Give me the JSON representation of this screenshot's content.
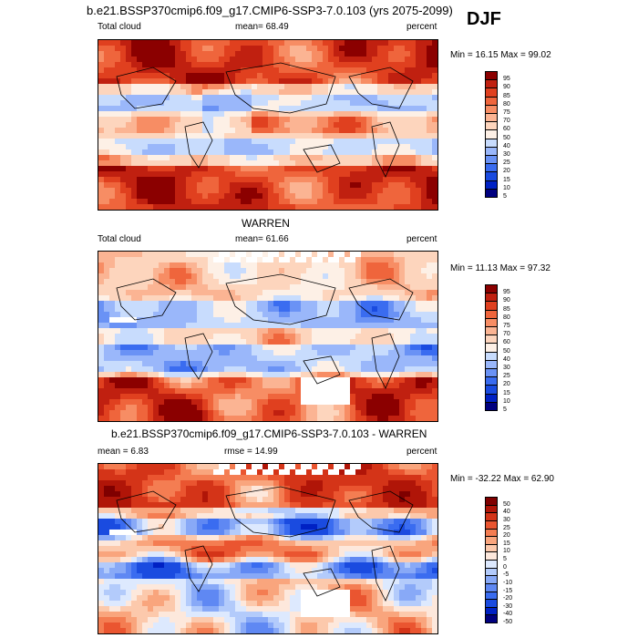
{
  "figure": {
    "title": "b.e21.BSSP370cmip6.f09_g17.CMIP6-SSP3-7.0.103 (yrs 2075-2099)",
    "season": "DJF"
  },
  "panels": [
    {
      "id": "model",
      "title": "",
      "left_label": "Total cloud",
      "center_label": "mean=  68.49",
      "right_label": "percent",
      "minmax": "Min =  16.15 Max =  99.02",
      "colorbar_labels": [
        "95",
        "90",
        "85",
        "80",
        "75",
        "70",
        "60",
        "50",
        "40",
        "30",
        "25",
        "20",
        "15",
        "10",
        "5"
      ]
    },
    {
      "id": "obs",
      "title": "WARREN",
      "left_label": "Total cloud",
      "center_label": "mean=  61.66",
      "right_label": "percent",
      "minmax": "Min =  11.13 Max =  97.32",
      "colorbar_labels": [
        "95",
        "90",
        "85",
        "80",
        "75",
        "70",
        "60",
        "50",
        "40",
        "30",
        "25",
        "20",
        "15",
        "10",
        "5"
      ]
    },
    {
      "id": "diff",
      "title": "b.e21.BSSP370cmip6.f09_g17.CMIP6-SSP3-7.0.103 - WARREN",
      "left_label": "mean =   6.83",
      "center_label": "rmse =  14.99",
      "right_label": "percent",
      "minmax": "Min = -32.22 Max =  62.90",
      "colorbar_labels": [
        "50",
        "40",
        "30",
        "25",
        "20",
        "15",
        "10",
        "5",
        "0",
        "-5",
        "-10",
        "-15",
        "-20",
        "-30",
        "-40",
        "-50"
      ]
    }
  ],
  "colors": {
    "abs_scale": [
      "#00007f",
      "#0021c4",
      "#1a4be0",
      "#3a6cf0",
      "#6a92f5",
      "#9ab7fa",
      "#c8dcfd",
      "#fdf0e6",
      "#fdd5bd",
      "#fbb493",
      "#f78d64",
      "#ef653c",
      "#e0401f",
      "#c02010",
      "#8b0000"
    ],
    "diff_scale": [
      "#00007f",
      "#0021c4",
      "#1a4be0",
      "#3a6cf0",
      "#5f88f3",
      "#88a9f7",
      "#b3cbfb",
      "#dde9fe",
      "#fde8dc",
      "#fcc9ac",
      "#f9a57d",
      "#f47d52",
      "#ea5530",
      "#d43418",
      "#b01508",
      "#7f0000"
    ]
  },
  "chart_data": [
    {
      "type": "heatmap",
      "title": "",
      "variable": "Total cloud",
      "units": "percent",
      "mean": 68.49,
      "min": 16.15,
      "max": 99.02,
      "levels": [
        5,
        10,
        15,
        20,
        25,
        30,
        40,
        50,
        60,
        70,
        75,
        80,
        85,
        90,
        95
      ]
    },
    {
      "type": "heatmap",
      "title": "WARREN",
      "variable": "Total cloud",
      "units": "percent",
      "mean": 61.66,
      "min": 11.13,
      "max": 97.32,
      "levels": [
        5,
        10,
        15,
        20,
        25,
        30,
        40,
        50,
        60,
        70,
        75,
        80,
        85,
        90,
        95
      ]
    },
    {
      "type": "heatmap",
      "title": "b.e21.BSSP370cmip6.f09_g17.CMIP6-SSP3-7.0.103 - WARREN",
      "units": "percent",
      "mean": 6.83,
      "rmse": 14.99,
      "min": -32.22,
      "max": 62.9,
      "levels": [
        -50,
        -40,
        -30,
        -20,
        -15,
        -10,
        -5,
        0,
        5,
        10,
        15,
        20,
        25,
        30,
        40,
        50
      ]
    }
  ]
}
